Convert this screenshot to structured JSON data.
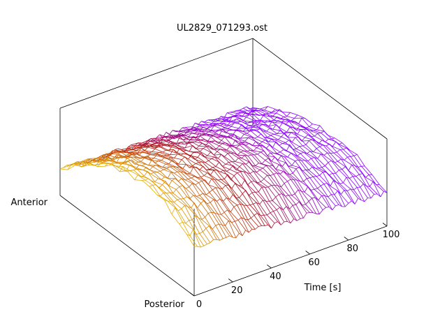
{
  "chart_data": {
    "type": "surface",
    "title": "UL2829_071293.ost",
    "x_axis": {
      "label": "Time [s]",
      "range": [
        0,
        100
      ],
      "ticks": [
        {
          "value": 0,
          "label": "0"
        },
        {
          "value": 20,
          "label": "20"
        },
        {
          "value": 40,
          "label": "40"
        },
        {
          "value": 60,
          "label": "60"
        },
        {
          "value": 80,
          "label": "80"
        },
        {
          "value": 100,
          "label": "100"
        }
      ]
    },
    "y_axis": {
      "range": [
        0,
        1
      ],
      "end_labels": {
        "min": "Posterior",
        "max": "Anterior"
      }
    },
    "z_axis": {
      "range": [
        0,
        1
      ]
    },
    "grid": false,
    "legend": "none",
    "grid_resolution": {
      "x": 60,
      "y": 18
    },
    "color_gradient": {
      "low_time": "#e6b000",
      "mid_time": "#b01818",
      "high_time": "#8c00ff"
    },
    "z_profile_peak_y": 0.35,
    "z_profile_peak_value": 0.76,
    "z_time_decay": 0.38,
    "z_noise": 0.035
  }
}
